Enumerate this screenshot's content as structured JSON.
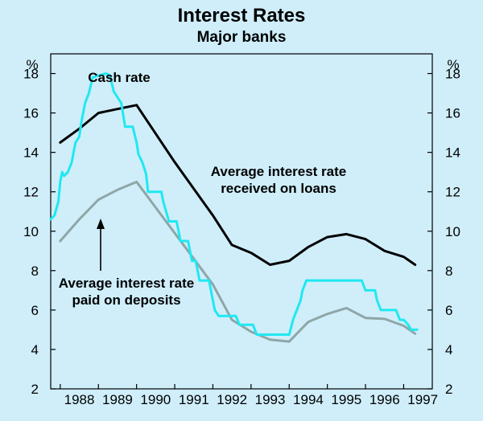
{
  "chart_data": {
    "type": "line",
    "title": "Interest Rates",
    "subtitle": "Major banks",
    "ylabel_left": "%",
    "ylabel_right": "%",
    "ylim": [
      2,
      19
    ],
    "yticks": [
      2,
      4,
      6,
      8,
      10,
      12,
      14,
      16,
      18
    ],
    "xlim": [
      1987.75,
      1997.75
    ],
    "xticks": [
      "1988",
      "1989",
      "1990",
      "1991",
      "1992",
      "1993",
      "1994",
      "1995",
      "1996",
      "1997"
    ],
    "annotations": {
      "cash": "Cash rate",
      "loans_1": "Average interest rate",
      "loans_2": "received on loans",
      "deposits_1": "Average interest rate",
      "deposits_2": "paid on deposits"
    },
    "colors": {
      "background": "#cfeefa",
      "cash": "#1fe8f2",
      "loans": "#000000",
      "deposits": "#8fa6a6",
      "axis": "#000000"
    },
    "series": [
      {
        "name": "Average interest rate received on loans",
        "points": [
          [
            1988.0,
            14.5
          ],
          [
            1988.5,
            15.2
          ],
          [
            1989.0,
            16.0
          ],
          [
            1989.5,
            16.2
          ],
          [
            1990.0,
            16.4
          ],
          [
            1991.0,
            13.5
          ],
          [
            1992.0,
            10.8
          ],
          [
            1992.5,
            9.3
          ],
          [
            1993.0,
            8.9
          ],
          [
            1993.5,
            8.3
          ],
          [
            1994.0,
            8.5
          ],
          [
            1994.5,
            9.2
          ],
          [
            1995.0,
            9.7
          ],
          [
            1995.5,
            9.85
          ],
          [
            1996.0,
            9.6
          ],
          [
            1996.5,
            9.0
          ],
          [
            1997.0,
            8.7
          ],
          [
            1997.3,
            8.3
          ]
        ]
      },
      {
        "name": "Average interest rate paid on deposits",
        "points": [
          [
            1988.0,
            9.5
          ],
          [
            1988.5,
            10.6
          ],
          [
            1989.0,
            11.6
          ],
          [
            1989.5,
            12.1
          ],
          [
            1990.0,
            12.5
          ],
          [
            1991.0,
            9.9
          ],
          [
            1992.0,
            7.3
          ],
          [
            1992.5,
            5.5
          ],
          [
            1993.0,
            4.9
          ],
          [
            1993.5,
            4.5
          ],
          [
            1994.0,
            4.4
          ],
          [
            1994.5,
            5.4
          ],
          [
            1995.0,
            5.8
          ],
          [
            1995.5,
            6.1
          ],
          [
            1996.0,
            5.6
          ],
          [
            1996.5,
            5.55
          ],
          [
            1997.0,
            5.2
          ],
          [
            1997.3,
            4.8
          ]
        ]
      },
      {
        "name": "Cash rate",
        "points": [
          [
            1987.75,
            10.6
          ],
          [
            1987.85,
            10.8
          ],
          [
            1987.95,
            11.5
          ],
          [
            1988.0,
            12.5
          ],
          [
            1988.05,
            13.0
          ],
          [
            1988.1,
            12.8
          ],
          [
            1988.2,
            13.0
          ],
          [
            1988.3,
            13.5
          ],
          [
            1988.35,
            14.0
          ],
          [
            1988.4,
            14.5
          ],
          [
            1988.5,
            14.8
          ],
          [
            1988.55,
            15.5
          ],
          [
            1988.65,
            16.5
          ],
          [
            1988.75,
            17.0
          ],
          [
            1988.85,
            17.8
          ],
          [
            1989.0,
            17.9
          ],
          [
            1989.2,
            18.0
          ],
          [
            1989.3,
            17.9
          ],
          [
            1989.4,
            17.1
          ],
          [
            1989.5,
            16.8
          ],
          [
            1989.6,
            16.5
          ],
          [
            1989.7,
            15.3
          ],
          [
            1989.9,
            15.3
          ],
          [
            1990.0,
            14.5
          ],
          [
            1990.05,
            13.9
          ],
          [
            1990.15,
            13.5
          ],
          [
            1990.25,
            12.9
          ],
          [
            1990.3,
            12.0
          ],
          [
            1990.65,
            12.0
          ],
          [
            1990.7,
            11.5
          ],
          [
            1990.85,
            10.5
          ],
          [
            1991.05,
            10.5
          ],
          [
            1991.15,
            9.5
          ],
          [
            1991.35,
            9.5
          ],
          [
            1991.45,
            8.5
          ],
          [
            1991.55,
            8.5
          ],
          [
            1991.65,
            7.5
          ],
          [
            1991.9,
            7.5
          ],
          [
            1992.0,
            6.5
          ],
          [
            1992.05,
            6.0
          ],
          [
            1992.15,
            5.7
          ],
          [
            1992.6,
            5.7
          ],
          [
            1992.7,
            5.25
          ],
          [
            1993.05,
            5.25
          ],
          [
            1993.15,
            4.75
          ],
          [
            1994.0,
            4.75
          ],
          [
            1994.1,
            5.5
          ],
          [
            1994.2,
            6.0
          ],
          [
            1994.3,
            6.5
          ],
          [
            1994.35,
            7.0
          ],
          [
            1994.45,
            7.5
          ],
          [
            1995.9,
            7.5
          ],
          [
            1996.0,
            7.0
          ],
          [
            1996.25,
            7.0
          ],
          [
            1996.3,
            6.5
          ],
          [
            1996.4,
            6.0
          ],
          [
            1996.8,
            6.0
          ],
          [
            1996.9,
            5.5
          ],
          [
            1997.0,
            5.5
          ],
          [
            1997.1,
            5.3
          ],
          [
            1997.2,
            5.0
          ],
          [
            1997.35,
            5.0
          ]
        ]
      }
    ]
  }
}
